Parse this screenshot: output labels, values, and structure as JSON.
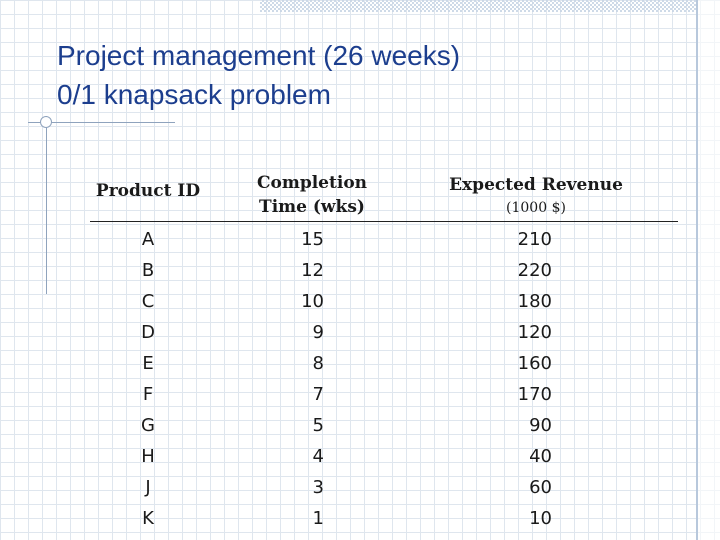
{
  "title": {
    "line1": "Project management (26 weeks)",
    "line2": "0/1 knapsack problem"
  },
  "table": {
    "headers": {
      "product_id": "Product ID",
      "completion_line1": "Completion",
      "completion_line2": "Time (wks)",
      "revenue": "Expected Revenue",
      "revenue_unit": "(1000 $)"
    },
    "rows": [
      {
        "id": "A",
        "time": "15",
        "revenue": "210"
      },
      {
        "id": "B",
        "time": "12",
        "revenue": "220"
      },
      {
        "id": "C",
        "time": "10",
        "revenue": "180"
      },
      {
        "id": "D",
        "time": "9",
        "revenue": "120"
      },
      {
        "id": "E",
        "time": "8",
        "revenue": "160"
      },
      {
        "id": "F",
        "time": "7",
        "revenue": "170"
      },
      {
        "id": "G",
        "time": "5",
        "revenue": "90"
      },
      {
        "id": "H",
        "time": "4",
        "revenue": "40"
      },
      {
        "id": "J",
        "time": "3",
        "revenue": "60"
      },
      {
        "id": "K",
        "time": "1",
        "revenue": "10"
      }
    ]
  }
}
